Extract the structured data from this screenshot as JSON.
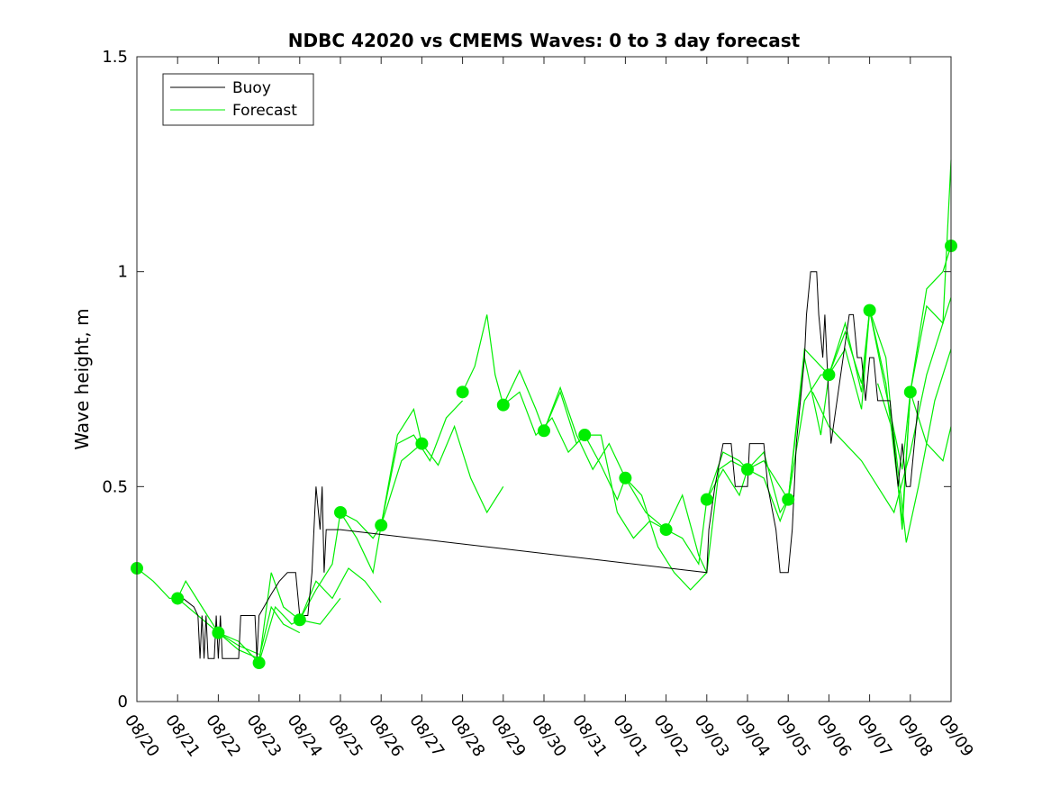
{
  "chart_data": {
    "type": "line",
    "title": "NDBC 42020 vs CMEMS Waves: 0 to 3 day forecast",
    "xlabel": "",
    "ylabel": "Wave height, m",
    "x_ticks": [
      "08/20",
      "08/21",
      "08/22",
      "08/23",
      "08/24",
      "08/25",
      "08/26",
      "08/27",
      "08/28",
      "08/29",
      "08/30",
      "08/31",
      "09/01",
      "09/02",
      "09/03",
      "09/04",
      "09/05",
      "09/06",
      "09/07",
      "09/08",
      "09/09"
    ],
    "y_ticks": [
      "0",
      "0.5",
      "1",
      "1.5"
    ],
    "xlim": [
      0,
      20
    ],
    "ylim": [
      0,
      1.5
    ],
    "legend": {
      "location": "top-left",
      "entries": [
        "Buoy",
        "Forecast"
      ]
    },
    "colors": {
      "buoy": "#000000",
      "forecast": "#00ee00",
      "markers": "#00ee00"
    },
    "series": [
      {
        "name": "Buoy",
        "points": [
          [
            1.0,
            0.25
          ],
          [
            1.4,
            0.22
          ],
          [
            1.5,
            0.2
          ],
          [
            1.55,
            0.1
          ],
          [
            1.6,
            0.2
          ],
          [
            1.65,
            0.1
          ],
          [
            1.7,
            0.2
          ],
          [
            1.75,
            0.1
          ],
          [
            1.9,
            0.1
          ],
          [
            1.95,
            0.2
          ],
          [
            2.0,
            0.1
          ],
          [
            2.05,
            0.2
          ],
          [
            2.1,
            0.1
          ],
          [
            2.5,
            0.1
          ],
          [
            2.55,
            0.2
          ],
          [
            2.9,
            0.2
          ],
          [
            2.95,
            0.1
          ],
          [
            3.0,
            0.2
          ],
          [
            3.3,
            0.25
          ],
          [
            3.5,
            0.28
          ],
          [
            3.7,
            0.3
          ],
          [
            3.9,
            0.3
          ],
          [
            4.0,
            0.2
          ],
          [
            4.2,
            0.2
          ],
          [
            4.3,
            0.3
          ],
          [
            4.35,
            0.4
          ],
          [
            4.4,
            0.5
          ],
          [
            4.5,
            0.4
          ],
          [
            4.55,
            0.5
          ],
          [
            4.6,
            0.3
          ],
          [
            4.65,
            0.4
          ],
          [
            4.8,
            0.4
          ],
          [
            5.0,
            0.4
          ],
          [
            14.0,
            0.3
          ],
          [
            14.05,
            0.4
          ],
          [
            14.2,
            0.5
          ],
          [
            14.4,
            0.6
          ],
          [
            14.6,
            0.6
          ],
          [
            14.7,
            0.5
          ],
          [
            15.0,
            0.5
          ],
          [
            15.05,
            0.6
          ],
          [
            15.4,
            0.6
          ],
          [
            15.5,
            0.5
          ],
          [
            15.7,
            0.4
          ],
          [
            15.8,
            0.3
          ],
          [
            16.0,
            0.3
          ],
          [
            16.1,
            0.4
          ],
          [
            16.15,
            0.5
          ],
          [
            16.2,
            0.6
          ],
          [
            16.3,
            0.7
          ],
          [
            16.4,
            0.8
          ],
          [
            16.45,
            0.9
          ],
          [
            16.55,
            1.0
          ],
          [
            16.7,
            1.0
          ],
          [
            16.75,
            0.9
          ],
          [
            16.85,
            0.8
          ],
          [
            16.9,
            0.9
          ],
          [
            16.95,
            0.8
          ],
          [
            17.0,
            0.7
          ],
          [
            17.05,
            0.6
          ],
          [
            17.2,
            0.7
          ],
          [
            17.35,
            0.8
          ],
          [
            17.5,
            0.9
          ],
          [
            17.6,
            0.9
          ],
          [
            17.7,
            0.8
          ],
          [
            17.8,
            0.8
          ],
          [
            17.9,
            0.7
          ],
          [
            18.0,
            0.8
          ],
          [
            18.1,
            0.8
          ],
          [
            18.2,
            0.7
          ],
          [
            18.5,
            0.7
          ],
          [
            18.6,
            0.6
          ],
          [
            18.7,
            0.5
          ],
          [
            18.8,
            0.6
          ],
          [
            18.9,
            0.5
          ],
          [
            19.0,
            0.5
          ],
          [
            19.1,
            0.6
          ],
          [
            19.2,
            0.7
          ]
        ]
      },
      {
        "name": "Forecast",
        "runs": [
          [
            [
              0,
              0.31
            ],
            [
              0.4,
              0.28
            ],
            [
              0.8,
              0.24
            ],
            [
              1.0,
              0.24
            ],
            [
              1.2,
              0.28
            ],
            [
              1.6,
              0.22
            ],
            [
              2.0,
              0.16
            ],
            [
              2.5,
              0.13
            ],
            [
              3.0,
              0.11
            ]
          ],
          [
            [
              1.0,
              0.24
            ],
            [
              1.5,
              0.2
            ],
            [
              2.0,
              0.16
            ],
            [
              2.5,
              0.12
            ],
            [
              3.0,
              0.1
            ],
            [
              3.3,
              0.22
            ],
            [
              3.6,
              0.18
            ],
            [
              4.0,
              0.16
            ]
          ],
          [
            [
              2.0,
              0.16
            ],
            [
              2.5,
              0.14
            ],
            [
              3.0,
              0.09
            ],
            [
              3.3,
              0.3
            ],
            [
              3.6,
              0.22
            ],
            [
              4.0,
              0.19
            ],
            [
              4.5,
              0.18
            ],
            [
              5.0,
              0.24
            ]
          ],
          [
            [
              3.0,
              0.09
            ],
            [
              3.4,
              0.22
            ],
            [
              3.8,
              0.18
            ],
            [
              4.0,
              0.19
            ],
            [
              4.4,
              0.28
            ],
            [
              4.8,
              0.24
            ],
            [
              5.2,
              0.31
            ],
            [
              5.6,
              0.28
            ],
            [
              6.0,
              0.23
            ]
          ],
          [
            [
              4.0,
              0.19
            ],
            [
              4.4,
              0.26
            ],
            [
              4.8,
              0.32
            ],
            [
              5.0,
              0.44
            ],
            [
              5.4,
              0.38
            ],
            [
              5.8,
              0.3
            ],
            [
              6.0,
              0.41
            ],
            [
              6.5,
              0.56
            ],
            [
              7.0,
              0.6
            ]
          ],
          [
            [
              5.0,
              0.44
            ],
            [
              5.4,
              0.42
            ],
            [
              5.8,
              0.38
            ],
            [
              6.0,
              0.41
            ],
            [
              6.4,
              0.6
            ],
            [
              6.8,
              0.62
            ],
            [
              7.2,
              0.56
            ],
            [
              7.6,
              0.66
            ],
            [
              8.0,
              0.7
            ]
          ],
          [
            [
              6.0,
              0.41
            ],
            [
              6.4,
              0.62
            ],
            [
              6.8,
              0.68
            ],
            [
              7.0,
              0.6
            ],
            [
              7.4,
              0.55
            ],
            [
              7.8,
              0.64
            ],
            [
              8.2,
              0.52
            ],
            [
              8.6,
              0.44
            ],
            [
              9.0,
              0.5
            ]
          ],
          [
            [
              8.0,
              0.72
            ],
            [
              8.3,
              0.78
            ],
            [
              8.6,
              0.9
            ],
            [
              8.8,
              0.76
            ],
            [
              9.0,
              0.69
            ],
            [
              9.4,
              0.72
            ],
            [
              9.8,
              0.62
            ],
            [
              10.2,
              0.66
            ],
            [
              10.6,
              0.58
            ],
            [
              11.0,
              0.62
            ]
          ],
          [
            [
              9.0,
              0.69
            ],
            [
              9.4,
              0.77
            ],
            [
              9.8,
              0.68
            ],
            [
              10.0,
              0.63
            ],
            [
              10.4,
              0.73
            ],
            [
              10.8,
              0.62
            ],
            [
              11.2,
              0.54
            ],
            [
              11.6,
              0.6
            ],
            [
              12.0,
              0.52
            ]
          ],
          [
            [
              10.0,
              0.63
            ],
            [
              10.4,
              0.72
            ],
            [
              10.8,
              0.6
            ],
            [
              11.0,
              0.62
            ],
            [
              11.4,
              0.55
            ],
            [
              11.8,
              0.47
            ],
            [
              12.0,
              0.52
            ],
            [
              12.5,
              0.44
            ],
            [
              13.0,
              0.4
            ]
          ],
          [
            [
              11.0,
              0.62
            ],
            [
              11.4,
              0.62
            ],
            [
              11.8,
              0.44
            ],
            [
              12.2,
              0.38
            ],
            [
              12.6,
              0.42
            ],
            [
              13.0,
              0.4
            ],
            [
              13.4,
              0.48
            ],
            [
              13.8,
              0.34
            ],
            [
              14.0,
              0.3
            ]
          ],
          [
            [
              12.0,
              0.52
            ],
            [
              12.4,
              0.48
            ],
            [
              12.8,
              0.36
            ],
            [
              13.2,
              0.3
            ],
            [
              13.6,
              0.26
            ],
            [
              14.0,
              0.3
            ],
            [
              14.3,
              0.54
            ],
            [
              14.6,
              0.56
            ],
            [
              15.0,
              0.54
            ]
          ],
          [
            [
              13.0,
              0.4
            ],
            [
              13.4,
              0.38
            ],
            [
              13.8,
              0.32
            ],
            [
              14.0,
              0.47
            ],
            [
              14.4,
              0.58
            ],
            [
              14.8,
              0.56
            ],
            [
              15.0,
              0.54
            ],
            [
              15.4,
              0.52
            ],
            [
              15.8,
              0.42
            ],
            [
              16.0,
              0.47
            ]
          ],
          [
            [
              14.0,
              0.47
            ],
            [
              14.4,
              0.54
            ],
            [
              14.8,
              0.48
            ],
            [
              15.0,
              0.54
            ],
            [
              15.4,
              0.58
            ],
            [
              15.8,
              0.44
            ],
            [
              16.0,
              0.47
            ],
            [
              16.4,
              0.82
            ],
            [
              16.8,
              0.78
            ],
            [
              17.0,
              0.76
            ]
          ],
          [
            [
              15.0,
              0.54
            ],
            [
              15.4,
              0.56
            ],
            [
              15.8,
              0.5
            ],
            [
              16.0,
              0.47
            ],
            [
              16.4,
              0.7
            ],
            [
              16.8,
              0.76
            ],
            [
              17.0,
              0.76
            ],
            [
              17.4,
              0.86
            ],
            [
              17.8,
              0.74
            ],
            [
              18.0,
              0.91
            ]
          ],
          [
            [
              16.0,
              0.47
            ],
            [
              16.4,
              0.8
            ],
            [
              16.8,
              0.62
            ],
            [
              17.0,
              0.76
            ],
            [
              17.4,
              0.88
            ],
            [
              17.8,
              0.72
            ],
            [
              18.0,
              0.91
            ],
            [
              18.4,
              0.72
            ],
            [
              18.8,
              0.54
            ],
            [
              19.0,
              0.72
            ]
          ],
          [
            [
              17.0,
              0.76
            ],
            [
              17.4,
              0.82
            ],
            [
              17.8,
              0.68
            ],
            [
              18.0,
              0.91
            ],
            [
              18.4,
              0.74
            ],
            [
              18.8,
              0.42
            ],
            [
              19.0,
              0.72
            ],
            [
              19.4,
              0.6
            ],
            [
              19.8,
              0.56
            ],
            [
              20.0,
              0.64
            ]
          ],
          [
            [
              18.0,
              0.91
            ],
            [
              18.4,
              0.8
            ],
            [
              18.8,
              0.4
            ],
            [
              19.0,
              0.72
            ],
            [
              19.4,
              0.96
            ],
            [
              19.8,
              1.0
            ],
            [
              20.0,
              1.06
            ]
          ],
          [
            [
              19.0,
              0.72
            ],
            [
              19.4,
              0.92
            ],
            [
              19.8,
              0.88
            ],
            [
              20.0,
              1.26
            ]
          ],
          [
            [
              18.2,
              0.74
            ],
            [
              18.6,
              0.62
            ],
            [
              18.9,
              0.37
            ],
            [
              19.2,
              0.5
            ],
            [
              19.6,
              0.7
            ],
            [
              20.0,
              0.82
            ]
          ],
          [
            [
              16.6,
              0.72
            ],
            [
              17.0,
              0.64
            ],
            [
              17.4,
              0.6
            ],
            [
              17.8,
              0.56
            ],
            [
              18.2,
              0.5
            ],
            [
              18.6,
              0.44
            ],
            [
              19.0,
              0.58
            ],
            [
              19.4,
              0.76
            ],
            [
              20.0,
              0.94
            ]
          ]
        ],
        "markers": [
          [
            0,
            0.31
          ],
          [
            1,
            0.24
          ],
          [
            2,
            0.16
          ],
          [
            3,
            0.09
          ],
          [
            4,
            0.19
          ],
          [
            5,
            0.44
          ],
          [
            6,
            0.41
          ],
          [
            7,
            0.6
          ],
          [
            8,
            0.72
          ],
          [
            9,
            0.69
          ],
          [
            10,
            0.63
          ],
          [
            11,
            0.62
          ],
          [
            12,
            0.52
          ],
          [
            13,
            0.4
          ],
          [
            14,
            0.47
          ],
          [
            15,
            0.54
          ],
          [
            16,
            0.47
          ],
          [
            17,
            0.76
          ],
          [
            18,
            0.91
          ],
          [
            19,
            0.72
          ],
          [
            20,
            1.06
          ]
        ]
      }
    ]
  }
}
